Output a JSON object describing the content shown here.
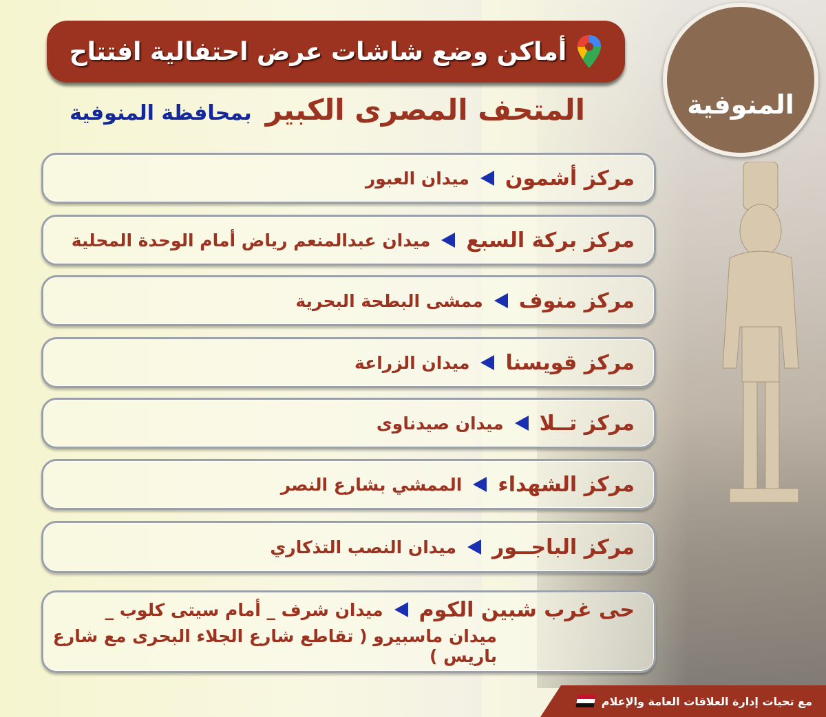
{
  "header": {
    "title": "أماكن وضع شاشات عرض احتفالية افتتاح",
    "subtitle_main": "المتحف المصرى الكبير",
    "subtitle_region": "بمحافظة المنوفية",
    "pin_icon": "map-pin-icon"
  },
  "logo": {
    "text": "المنوفية"
  },
  "locations": [
    {
      "center": "مركز أشمون",
      "place": "ميدان العبور"
    },
    {
      "center": "مركز بركة السبع",
      "place": "ميدان عبدالمنعم رياض أمام الوحدة المحلية"
    },
    {
      "center": "مركز منوف",
      "place": "ممشى البطحة البحرية"
    },
    {
      "center": "مركز قويسنا",
      "place": "ميدان الزراعة"
    },
    {
      "center": "مركز تــلا",
      "place": "ميدان صيدناوى"
    },
    {
      "center": "مركز الشهداء",
      "place": "الممشي بشارع النصر"
    },
    {
      "center": "مركز الباجــور",
      "place": "ميدان النصب التذكاري"
    },
    {
      "center": "حى غرب شبين الكوم",
      "place": "ميدان شرف _ أمام سيتى كلوب _",
      "place_line2": "ميدان ماسبيرو (  تقاطع شارع الجلاء البحرى مع شارع باريس )"
    }
  ],
  "footer": {
    "text": "مع تحيات إدارة العلاقات العامة والإعلام"
  },
  "colors": {
    "brand_red": "#9b3320",
    "accent_blue": "#14289a"
  }
}
